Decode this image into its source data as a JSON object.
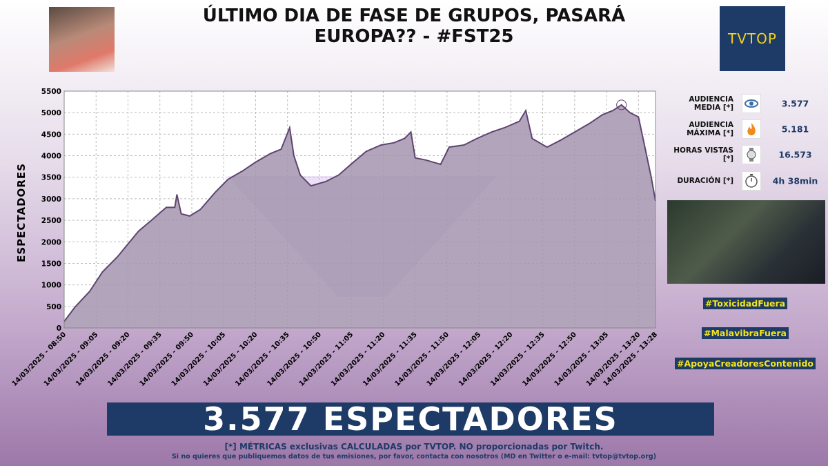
{
  "header": {
    "title": "ÚLTIMO DIA DE FASE DE GRUPOS, PASARÁ EUROPA?? - #FST25",
    "logo": "TVTOP"
  },
  "chart_data": {
    "type": "area",
    "y_label": "ESPECTADORES",
    "color": "#a594ae",
    "line_color": "#5e4470",
    "grid": true,
    "x": [
      "2025-03-14 08:50",
      "2025-03-14 08:55",
      "2025-03-14 09:02",
      "2025-03-14 09:08",
      "2025-03-14 09:15",
      "2025-03-14 09:20",
      "2025-03-14 09:25",
      "2025-03-14 09:31",
      "2025-03-14 09:38",
      "2025-03-14 09:42",
      "2025-03-14 09:43",
      "2025-03-14 09:45",
      "2025-03-14 09:49",
      "2025-03-14 09:54",
      "2025-03-14 10:01",
      "2025-03-14 10:07",
      "2025-03-14 10:14",
      "2025-03-14 10:20",
      "2025-03-14 10:27",
      "2025-03-14 10:32",
      "2025-03-14 10:36",
      "2025-03-14 10:38",
      "2025-03-14 10:41",
      "2025-03-14 10:46",
      "2025-03-14 10:53",
      "2025-03-14 10:59",
      "2025-03-14 11:06",
      "2025-03-14 11:12",
      "2025-03-14 11:19",
      "2025-03-14 11:25",
      "2025-03-14 11:30",
      "2025-03-14 11:33",
      "2025-03-14 11:35",
      "2025-03-14 11:40",
      "2025-03-14 11:47",
      "2025-03-14 11:51",
      "2025-03-14 11:58",
      "2025-03-14 12:04",
      "2025-03-14 12:11",
      "2025-03-14 12:17",
      "2025-03-14 12:24",
      "2025-03-14 12:27",
      "2025-03-14 12:30",
      "2025-03-14 12:37",
      "2025-03-14 12:43",
      "2025-03-14 12:50",
      "2025-03-14 12:57",
      "2025-03-14 13:03",
      "2025-03-14 13:08",
      "2025-03-14 13:12",
      "2025-03-14 13:16",
      "2025-03-14 13:20",
      "2025-03-14 13:23",
      "2025-03-14 13:26",
      "2025-03-14 13:28"
    ],
    "values": [
      150,
      480,
      850,
      1300,
      1650,
      1950,
      2250,
      2500,
      2800,
      2800,
      3100,
      2650,
      2600,
      2750,
      3150,
      3450,
      3650,
      3850,
      4050,
      4150,
      4650,
      4000,
      3550,
      3300,
      3400,
      3550,
      3850,
      4100,
      4250,
      4300,
      4400,
      4550,
      3950,
      3900,
      3800,
      4200,
      4250,
      4400,
      4550,
      4650,
      4800,
      5050,
      4400,
      4200,
      4350,
      4550,
      4750,
      4950,
      5050,
      5181,
      5000,
      4900,
      4200,
      3500,
      2950
    ],
    "xlim": [
      "2025-03-14 08:50",
      "2025-03-14 13:28"
    ],
    "xticks": [
      {
        "value": "2025-03-14 08:50",
        "label": "14/03/2025 - 08:50"
      },
      {
        "value": "2025-03-14 09:05",
        "label": "14/03/2025 - 09:05"
      },
      {
        "value": "2025-03-14 09:20",
        "label": "14/03/2025 - 09:20"
      },
      {
        "value": "2025-03-14 09:35",
        "label": "14/03/2025 - 09:35"
      },
      {
        "value": "2025-03-14 09:50",
        "label": "14/03/2025 - 09:50"
      },
      {
        "value": "2025-03-14 10:05",
        "label": "14/03/2025 - 10:05"
      },
      {
        "value": "2025-03-14 10:20",
        "label": "14/03/2025 - 10:20"
      },
      {
        "value": "2025-03-14 10:35",
        "label": "14/03/2025 - 10:35"
      },
      {
        "value": "2025-03-14 10:50",
        "label": "14/03/2025 - 10:50"
      },
      {
        "value": "2025-03-14 11:05",
        "label": "14/03/2025 - 11:05"
      },
      {
        "value": "2025-03-14 11:20",
        "label": "14/03/2025 - 11:20"
      },
      {
        "value": "2025-03-14 11:35",
        "label": "14/03/2025 - 11:35"
      },
      {
        "value": "2025-03-14 11:50",
        "label": "14/03/2025 - 11:50"
      },
      {
        "value": "2025-03-14 12:05",
        "label": "14/03/2025 - 12:05"
      },
      {
        "value": "2025-03-14 12:20",
        "label": "14/03/2025 - 12:20"
      },
      {
        "value": "2025-03-14 12:35",
        "label": "14/03/2025 - 12:35"
      },
      {
        "value": "2025-03-14 12:50",
        "label": "14/03/2025 - 12:50"
      },
      {
        "value": "2025-03-14 13:05",
        "label": "14/03/2025 - 13:05"
      },
      {
        "value": "2025-03-14 13:20",
        "label": "14/03/2025 - 13:20"
      },
      {
        "value": "2025-03-14 13:28",
        "label": "14/03/2025 - 13:28"
      }
    ],
    "ylim": [
      0,
      5500
    ],
    "yticks": [
      0,
      500,
      1000,
      1500,
      2000,
      2500,
      3000,
      3500,
      4000,
      4500,
      5000,
      5500
    ]
  },
  "stats": [
    {
      "label": "AUDIENCIA MEDIA [*]",
      "value": "3.577"
    },
    {
      "label": "AUDIENCIA MÁXIMA [*]",
      "value": "5.181"
    },
    {
      "label": "HORAS VISTAS [*]",
      "value": "16.573"
    },
    {
      "label": "DURACIÓN [*]",
      "value": "4h 38min"
    }
  ],
  "hashtags": [
    "#ToxicidadFuera",
    "#MalavibraFuera",
    "#ApoyaCreadoresContenido"
  ],
  "banner": "3.577 ESPECTADORES",
  "footer": [
    "[*] MÉTRICAS exclusivas CALCULADAS por TVTOP. NO proporcionadas por Twitch.",
    "Si no quieres que publiquemos datos de tus emisiones, por favor, contacta con nosotros (MD en Twitter o e-mail: tvtop@tvtop.org)"
  ]
}
